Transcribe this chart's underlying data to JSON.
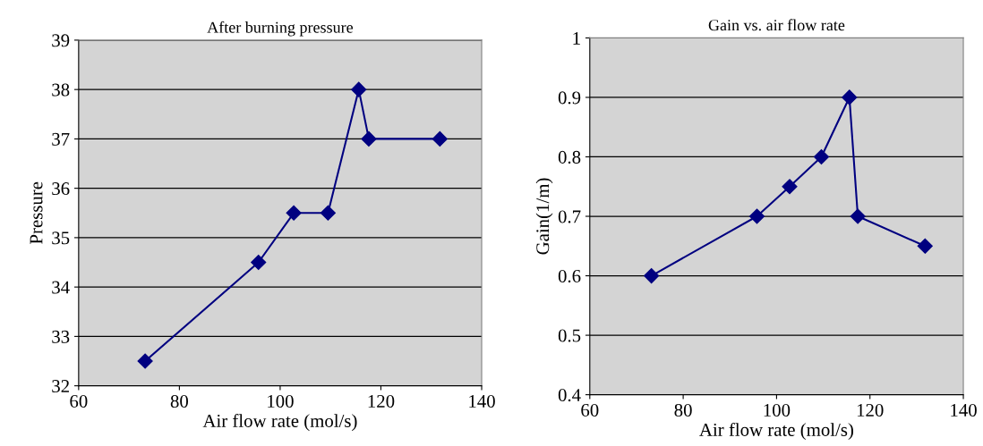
{
  "chart_data": [
    {
      "type": "line",
      "title": "After burning pressure",
      "xlabel": "Air flow rate (mol/s)",
      "ylabel": "Pressure",
      "x": [
        73.2,
        95.7,
        102.7,
        109.5,
        115.6,
        117.6,
        131.7
      ],
      "series": [
        {
          "color": "#000080",
          "values": [
            32.5,
            34.5,
            35.5,
            35.5,
            38,
            37,
            37
          ]
        }
      ],
      "xlim": [
        60,
        140
      ],
      "xticks": [
        60,
        80,
        100,
        120,
        140
      ],
      "ylim": [
        32,
        39
      ],
      "yticks": [
        32,
        33,
        34,
        35,
        36,
        37,
        38,
        39
      ],
      "grid": "y",
      "marker": "diamond",
      "line_style": "solid"
    },
    {
      "type": "line",
      "title": "Gain vs. air flow rate",
      "xlabel": "Air flow rate (mol/s)",
      "ylabel": "Gain(1/m)",
      "x": [
        73.2,
        95.8,
        102.8,
        109.6,
        115.6,
        117.4,
        131.8
      ],
      "series": [
        {
          "color": "#000080",
          "values": [
            0.6,
            0.7,
            0.75,
            0.8,
            0.9,
            0.7,
            0.65
          ]
        }
      ],
      "xlim": [
        60,
        140
      ],
      "xticks": [
        60,
        80,
        100,
        120,
        140
      ],
      "ylim": [
        0.4,
        1
      ],
      "yticks": [
        0.4,
        0.5,
        0.6,
        0.7,
        0.8,
        0.9,
        1
      ],
      "grid": "y",
      "marker": "diamond",
      "line_style": "solid"
    }
  ]
}
